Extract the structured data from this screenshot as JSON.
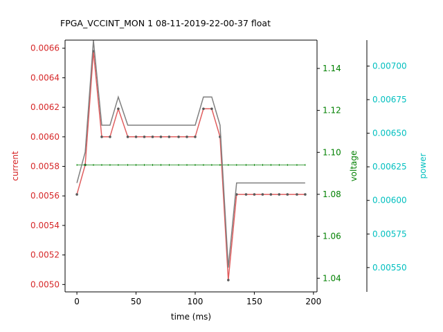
{
  "chart_data": {
    "type": "line",
    "title": "FPGA_VCCINT_MON   1   08-11-2019-22-00-37   float",
    "xlabel": "time (ms)",
    "x_ticks": [
      0,
      50,
      100,
      150,
      200
    ],
    "xlim": [
      -10,
      203
    ],
    "grid": false,
    "legend": "none",
    "axes": [
      {
        "name": "current",
        "ylabel": "current",
        "color": "#d62728",
        "ylim": [
          0.00495,
          0.006655
        ],
        "ticks": [
          0.005,
          0.0052,
          0.0054,
          0.0056,
          0.0058,
          0.006,
          0.0062,
          0.0064,
          0.0066
        ],
        "tick_decimals": 4
      },
      {
        "name": "voltage",
        "ylabel": "voltage",
        "color": "#008000",
        "ylim": [
          1.0335,
          1.1535
        ],
        "ticks": [
          1.04,
          1.06,
          1.08,
          1.1,
          1.12,
          1.14
        ],
        "tick_decimals": 2
      },
      {
        "name": "power",
        "ylabel": "power",
        "color": "#00bfbf",
        "ylim": [
          0.005319,
          0.007193
        ],
        "ticks": [
          0.0055,
          0.00575,
          0.006,
          0.00625,
          0.0065,
          0.00675,
          0.007
        ],
        "tick_decimals": 5
      }
    ],
    "x": [
      0,
      7,
      14,
      21,
      28,
      35,
      43,
      50,
      57,
      64,
      71,
      78,
      86,
      93,
      100,
      107,
      114,
      121,
      128,
      135,
      143,
      150,
      157,
      164,
      171,
      178,
      186,
      193
    ],
    "series": [
      {
        "name": "current",
        "axis": 0,
        "color": "#d62728",
        "values": [
          0.00561,
          0.00581,
          0.00658,
          0.006,
          0.006,
          0.00619,
          0.006,
          0.006,
          0.006,
          0.006,
          0.006,
          0.006,
          0.006,
          0.006,
          0.006,
          0.00619,
          0.00619,
          0.006,
          0.00503,
          0.00561,
          0.00561,
          0.00561,
          0.00561,
          0.00561,
          0.00561,
          0.00561,
          0.00561,
          0.00561
        ]
      },
      {
        "name": "voltage",
        "axis": 1,
        "color": "#008000",
        "values": [
          1.094,
          1.094,
          1.094,
          1.094,
          1.094,
          1.094,
          1.094,
          1.094,
          1.094,
          1.094,
          1.094,
          1.094,
          1.094,
          1.094,
          1.094,
          1.094,
          1.094,
          1.094,
          1.094,
          1.094,
          1.094,
          1.094,
          1.094,
          1.094,
          1.094,
          1.094,
          1.094,
          1.094
        ]
      },
      {
        "name": "power",
        "axis": 2,
        "color": "#7f7f7f",
        "values": [
          0.00613,
          0.00636,
          0.00719,
          0.00656,
          0.00656,
          0.00677,
          0.00656,
          0.00656,
          0.00656,
          0.00656,
          0.00656,
          0.00656,
          0.00656,
          0.00656,
          0.00656,
          0.00677,
          0.00677,
          0.00656,
          0.0055,
          0.00613,
          0.00613,
          0.00613,
          0.00613,
          0.00613,
          0.00613,
          0.00613,
          0.00613,
          0.00613
        ]
      }
    ]
  }
}
